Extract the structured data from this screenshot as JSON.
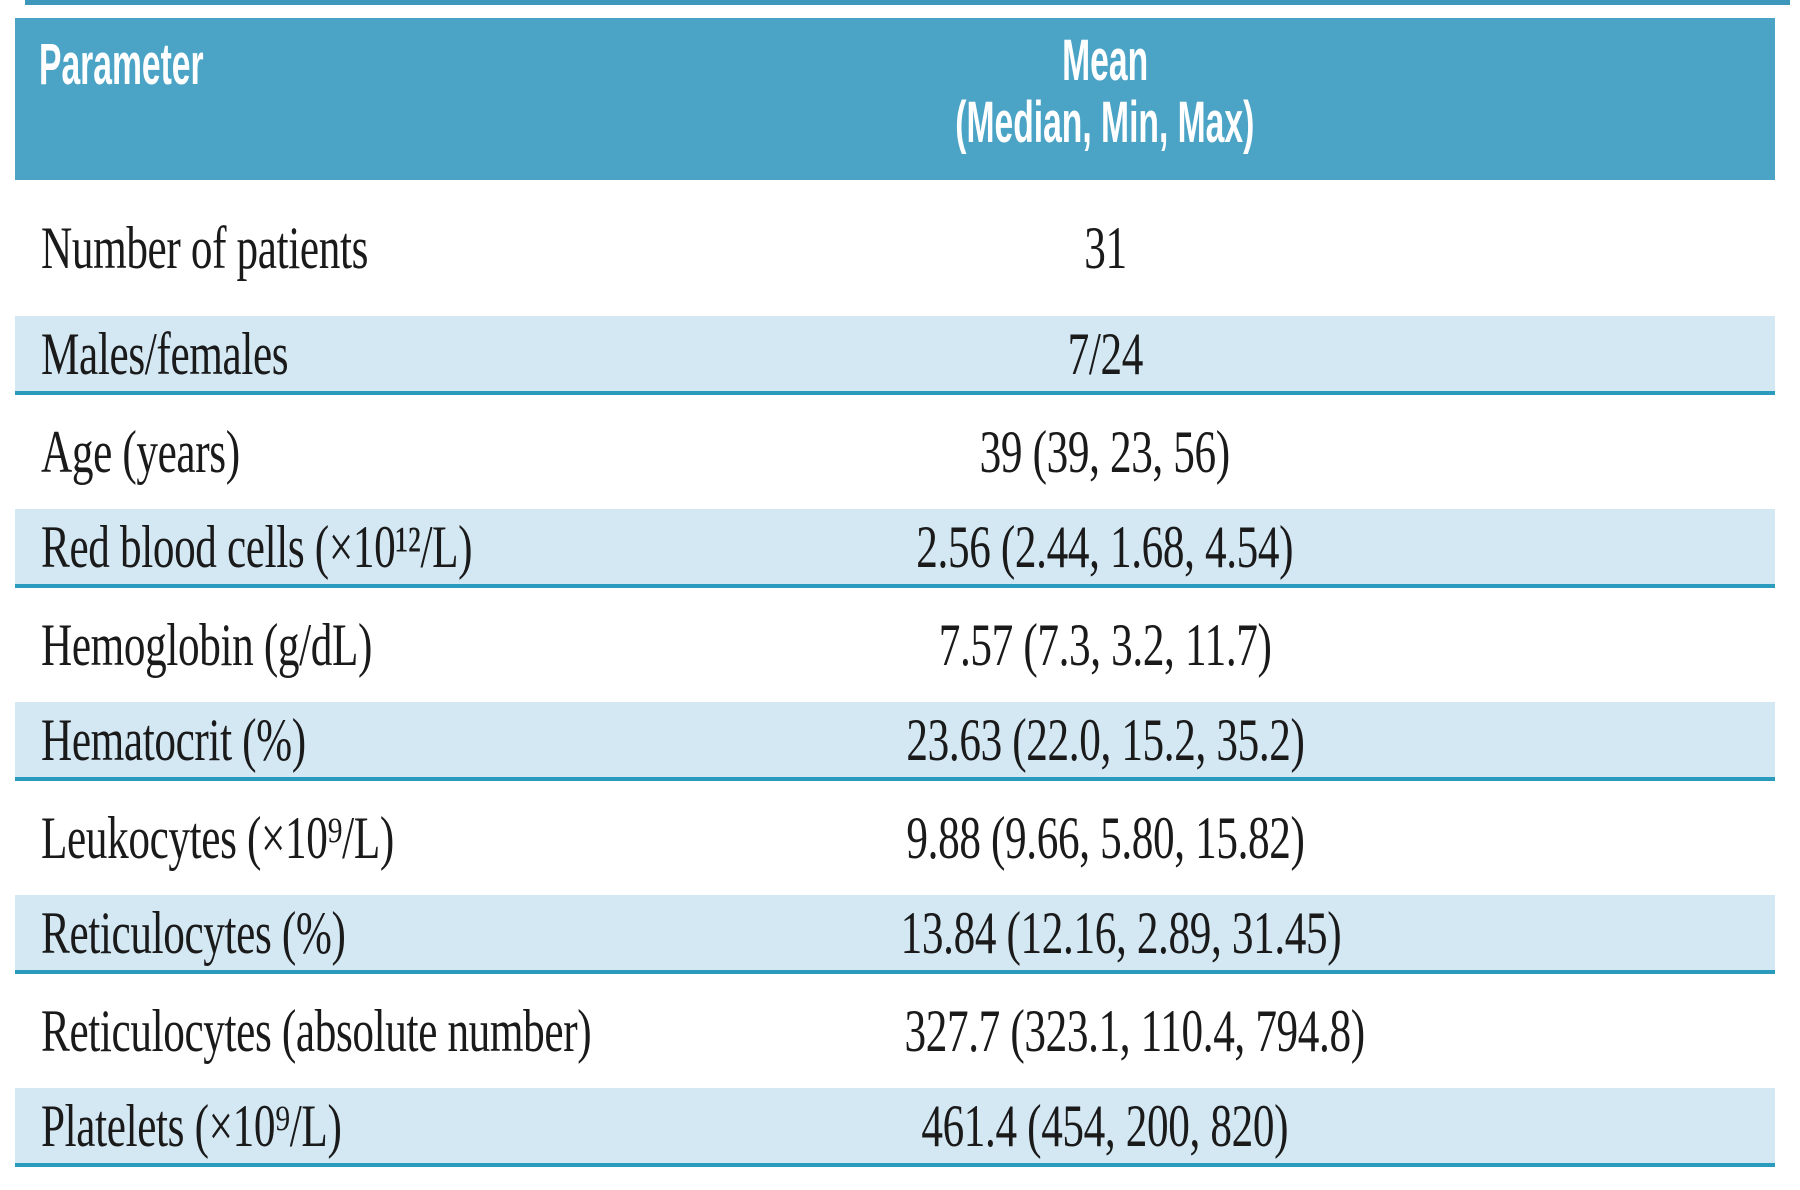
{
  "table": {
    "header": {
      "col1": "Parameter",
      "col2_line1": "Mean",
      "col2_line2": "(Median, Min, Max)"
    },
    "rows": [
      {
        "parameter": "Number of patients",
        "value": "31"
      },
      {
        "parameter": "Males/females",
        "value": "7/24"
      },
      {
        "parameter": "Age (years)",
        "value": "39 (39, 23, 56)"
      },
      {
        "parameter": "Red blood cells (×10¹²/L)",
        "value": "2.56 (2.44, 1.68, 4.54)"
      },
      {
        "parameter": "Hemoglobin (g/dL)",
        "value": "7.57 (7.3, 3.2, 11.7)"
      },
      {
        "parameter": "Hematocrit (%)",
        "value": "23.63 (22.0, 15.2, 35.2)"
      },
      {
        "parameter": "Leukocytes (×10⁹/L)",
        "value": "9.88 (9.66, 5.80, 15.82)"
      },
      {
        "parameter": "Reticulocytes (%)",
        "value": "13.84 (12.16, 2.89, 31.45)"
      },
      {
        "parameter": "Reticulocytes (absolute number)",
        "value": "327.7 (323.1, 110.4, 794.8)"
      },
      {
        "parameter": "Platelets (×10⁹/L)",
        "value": "461.4 (454, 200, 820)"
      }
    ]
  },
  "colors": {
    "header_bg": "#4BA3C6",
    "shaded_row_bg": "#D4E8F4",
    "row_border": "#2A9ABD",
    "top_rule": "#3D97BA",
    "body_text": "#1A1A1A",
    "header_text": "#FFFFFF"
  }
}
